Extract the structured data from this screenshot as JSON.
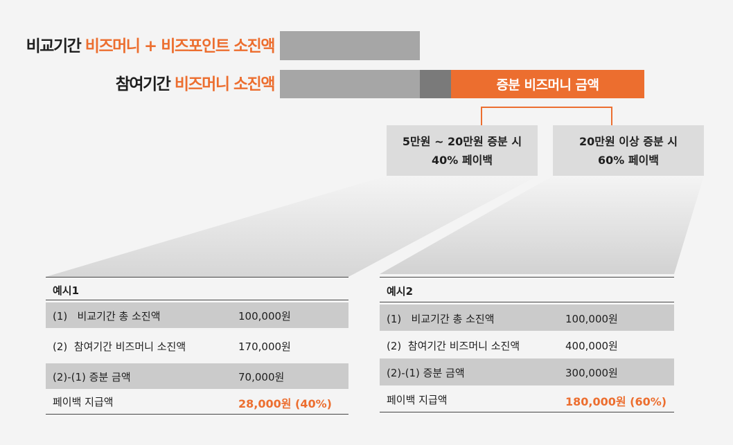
{
  "rows": {
    "comparison": {
      "dark": "비교기간",
      "orange": "비즈머니 + 비즈포인트 소진액"
    },
    "participation": {
      "dark": "참여기간",
      "orange": "비즈머니 소진액"
    }
  },
  "increase_bar_label": "증분 비즈머니 금액",
  "callouts": [
    {
      "line1": "5만원 ~ 20만원 증분 시",
      "line2": "40% 페이백"
    },
    {
      "line1": "20만원 이상 증분 시",
      "line2": "60% 페이백"
    }
  ],
  "examples": [
    {
      "title": "예시1",
      "rows": [
        {
          "label": "(1)   비교기간 총 소진액",
          "value": "100,000원"
        },
        {
          "label": "(2)  참여기간 비즈머니 소진액",
          "value": "170,000원"
        },
        {
          "label": "(2)-(1) 증분 금액",
          "value": "70,000원"
        },
        {
          "label": "페이백 지급액",
          "value": "28,000원 (40%)"
        }
      ]
    },
    {
      "title": "예시2",
      "rows": [
        {
          "label": "(1)   비교기간 총 소진액",
          "value": "100,000원"
        },
        {
          "label": "(2)  참여기간 비즈머니 소진액",
          "value": "400,000원"
        },
        {
          "label": "(2)-(1) 증분 금액",
          "value": "300,000원"
        },
        {
          "label": "페이백 지급액",
          "value": "180,000원 (60%)"
        }
      ]
    }
  ],
  "colors": {
    "accent": "#ec6e2f",
    "bar_gray": "#a6a6a6",
    "bar_dark_gray": "#7a7a7a",
    "callout_bg": "#dcdcdc",
    "row_shade": "#cbcbcb",
    "background": "#f4f4f4"
  }
}
